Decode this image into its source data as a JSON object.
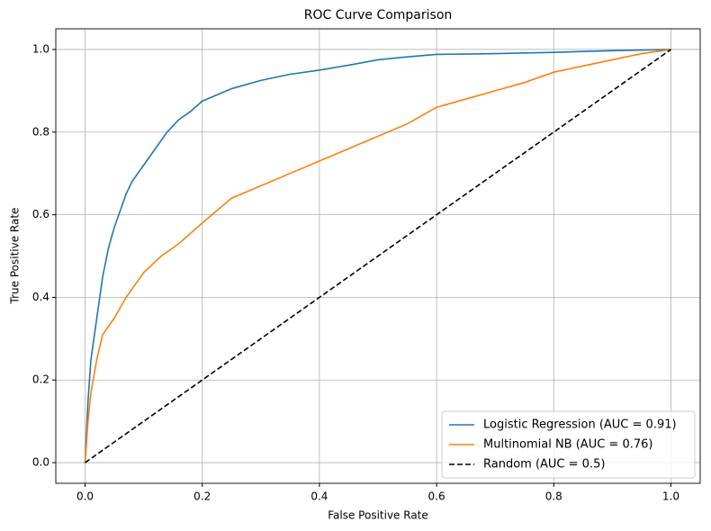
{
  "chart_data": {
    "type": "line",
    "title": "ROC Curve Comparison",
    "x_label": "False Positive Rate",
    "y_label": "True Positive Rate",
    "xlim": [
      -0.05,
      1.05
    ],
    "ylim": [
      -0.05,
      1.05
    ],
    "xticks": [
      {
        "value": 0,
        "label": "0.0"
      },
      {
        "value": 0.2,
        "label": "0.2"
      },
      {
        "value": 0.4,
        "label": "0.4"
      },
      {
        "value": 0.6,
        "label": "0.6"
      },
      {
        "value": 0.8,
        "label": "0.8"
      },
      {
        "value": 1,
        "label": "1.0"
      }
    ],
    "yticks": [
      {
        "value": 0,
        "label": "0.0"
      },
      {
        "value": 0.2,
        "label": "0.2"
      },
      {
        "value": 0.4,
        "label": "0.4"
      },
      {
        "value": 0.6,
        "label": "0.6"
      },
      {
        "value": 0.8,
        "label": "0.8"
      },
      {
        "value": 1,
        "label": "1.0"
      }
    ],
    "grid": true,
    "legend_position": "lower right",
    "series": [
      {
        "name": "Logistic Regression (AUC = 0.91)",
        "color": "#1f77b4",
        "linestyle": "solid",
        "x": [
          0,
          0.005,
          0.01,
          0.02,
          0.03,
          0.04,
          0.05,
          0.06,
          0.07,
          0.08,
          0.1,
          0.12,
          0.14,
          0.16,
          0.18,
          0.2,
          0.25,
          0.3,
          0.35,
          0.4,
          0.45,
          0.5,
          0.55,
          0.6,
          0.7,
          0.8,
          0.9,
          1
        ],
        "values": [
          0,
          0.15,
          0.25,
          0.35,
          0.45,
          0.52,
          0.57,
          0.61,
          0.65,
          0.68,
          0.72,
          0.76,
          0.8,
          0.83,
          0.85,
          0.875,
          0.905,
          0.925,
          0.94,
          0.95,
          0.962,
          0.975,
          0.982,
          0.988,
          0.99,
          0.993,
          0.997,
          1
        ]
      },
      {
        "name": "Multinomial NB (AUC = 0.76)",
        "color": "#ff7f0e",
        "linestyle": "solid",
        "x": [
          0,
          0.005,
          0.01,
          0.02,
          0.03,
          0.05,
          0.07,
          0.1,
          0.13,
          0.16,
          0.2,
          0.25,
          0.3,
          0.35,
          0.4,
          0.45,
          0.5,
          0.55,
          0.6,
          0.65,
          0.7,
          0.75,
          0.8,
          0.85,
          0.9,
          0.95,
          1
        ],
        "values": [
          0,
          0.1,
          0.17,
          0.25,
          0.31,
          0.35,
          0.4,
          0.46,
          0.5,
          0.53,
          0.58,
          0.64,
          0.67,
          0.7,
          0.73,
          0.76,
          0.79,
          0.82,
          0.86,
          0.88,
          0.9,
          0.92,
          0.945,
          0.96,
          0.975,
          0.99,
          1
        ]
      },
      {
        "name": "Random (AUC = 0.5)",
        "color": "#000000",
        "linestyle": "dashed",
        "x": [
          0,
          1
        ],
        "values": [
          0,
          1
        ]
      }
    ]
  }
}
